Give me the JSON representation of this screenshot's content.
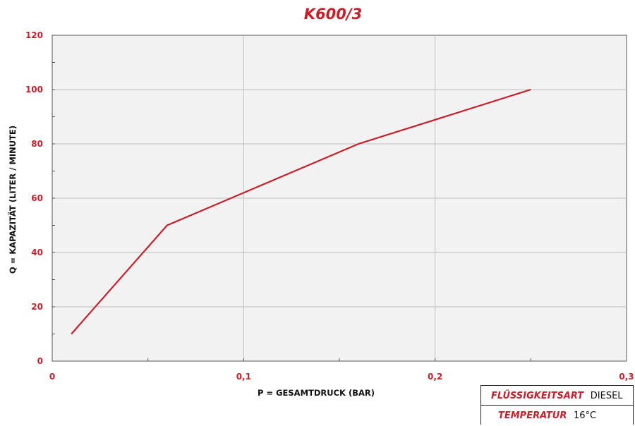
{
  "chart_data": {
    "type": "line",
    "title": "K600/3",
    "xlabel": "P = GESAMTDRUCK (BAR)",
    "ylabel": "Q = KAPAZITÄT (LITER / MINUTE)",
    "xlim": [
      0,
      0.3
    ],
    "ylim": [
      0,
      120
    ],
    "x_ticks": [
      "0",
      "0,1",
      "0,2",
      "0,3"
    ],
    "x_tick_values": [
      0,
      0.1,
      0.2,
      0.3
    ],
    "y_ticks": [
      "0",
      "20",
      "40",
      "60",
      "80",
      "100",
      "120"
    ],
    "y_tick_values": [
      0,
      20,
      40,
      60,
      80,
      100,
      120
    ],
    "grid": true,
    "series": [
      {
        "color": "#c8202a",
        "x": [
          0.01,
          0.06,
          0.16,
          0.25
        ],
        "y": [
          10,
          50,
          80,
          100
        ]
      }
    ]
  },
  "info_table": [
    {
      "label": "FLÜSSIGKEITSART",
      "value": "DIESEL"
    },
    {
      "label": "TEMPERATUR",
      "value": "16°C"
    }
  ],
  "colors": {
    "accent": "#c8202a",
    "grid": "#bfbfbf",
    "plot_bg": "#f2f2f2"
  }
}
